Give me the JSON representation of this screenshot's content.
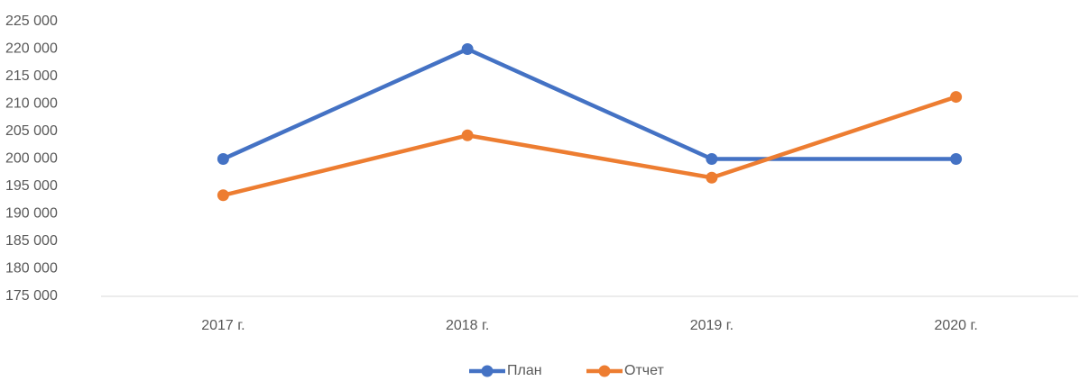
{
  "chart_data": {
    "type": "line",
    "categories": [
      "2017 г.",
      "2018 г.",
      "2019 г.",
      "2020 г."
    ],
    "series": [
      {
        "name": "План",
        "color": "#4472c4",
        "values": [
          200000,
          220000,
          200000,
          200000
        ]
      },
      {
        "name": "Отчет",
        "color": "#ed7d31",
        "values": [
          193400,
          204300,
          196600,
          211300
        ]
      }
    ],
    "ylim": [
      175000,
      225000
    ],
    "yticks": [
      {
        "value": 175000,
        "label": "175 000"
      },
      {
        "value": 180000,
        "label": "180 000"
      },
      {
        "value": 185000,
        "label": "185 000"
      },
      {
        "value": 190000,
        "label": "190 000"
      },
      {
        "value": 195000,
        "label": "195 000"
      },
      {
        "value": 200000,
        "label": "200 000"
      },
      {
        "value": 205000,
        "label": "205 000"
      },
      {
        "value": 210000,
        "label": "210 000"
      },
      {
        "value": 215000,
        "label": "215 000"
      },
      {
        "value": 220000,
        "label": "220 000"
      },
      {
        "value": 225000,
        "label": "225 000"
      }
    ],
    "grid": false,
    "legend": "bottom"
  }
}
